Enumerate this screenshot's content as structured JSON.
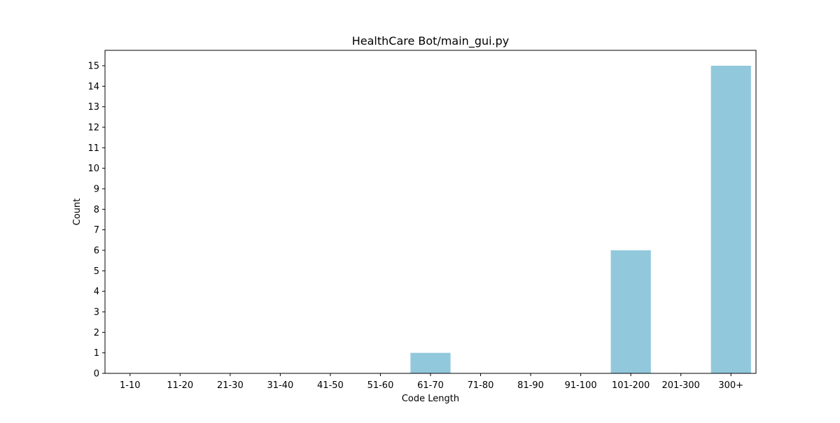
{
  "chart_data": {
    "type": "bar",
    "title": "HealthCare Bot/main_gui.py",
    "xlabel": "Code Length",
    "ylabel": "Count",
    "categories": [
      "1-10",
      "11-20",
      "21-30",
      "31-40",
      "41-50",
      "51-60",
      "61-70",
      "71-80",
      "81-90",
      "91-100",
      "101-200",
      "201-300",
      "300+"
    ],
    "values": [
      0,
      0,
      0,
      0,
      0,
      0,
      1,
      0,
      0,
      0,
      6,
      0,
      15
    ],
    "ylim": [
      0,
      15.75
    ],
    "yticks": [
      0,
      1,
      2,
      3,
      4,
      5,
      6,
      7,
      8,
      9,
      10,
      11,
      12,
      13,
      14,
      15
    ],
    "grid": false,
    "legend": "none",
    "bar_color": "#92c8dc"
  }
}
